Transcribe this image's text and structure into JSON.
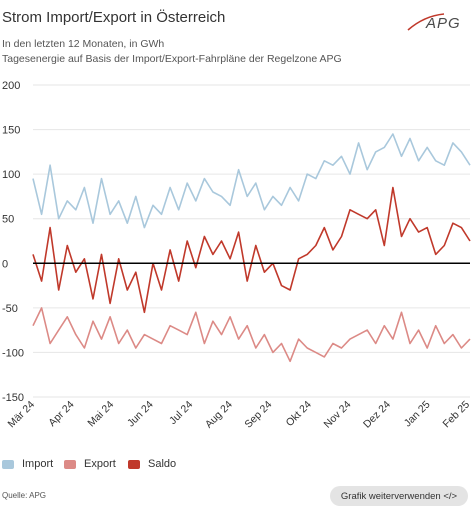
{
  "header": {
    "title": "Strom Import/Export in Österreich",
    "subtitle_1": "In den letzten 12 Monaten, in GWh",
    "subtitle_2": "Tagesenergie auf Basis der Import/Export-Fahrpläne der Regelzone APG",
    "logo_text": "APG"
  },
  "footer": {
    "source": "Quelle: APG",
    "reuse_button": "Grafik weiterverwenden </>"
  },
  "colors": {
    "import": "#a9c8dc",
    "export": "#dc8a86",
    "saldo": "#c0392b",
    "zero_line": "#000000",
    "grid": "#e6e6e6",
    "logo": "#c0392b"
  },
  "chart_data": {
    "type": "line",
    "title": "Strom Import/Export in Österreich",
    "xlabel": "",
    "ylabel": "",
    "ylim": [
      -150,
      200
    ],
    "yticks": [
      -150,
      -100,
      -50,
      0,
      50,
      100,
      150,
      200
    ],
    "x_tick_labels": [
      "Mär 24",
      "Apr 24",
      "Mai 24",
      "Jun 24",
      "Jul 24",
      "Aug 24",
      "Sep 24",
      "Okt 24",
      "Nov 24",
      "Dez 24",
      "Jan 25",
      "Feb 25"
    ],
    "grid": "horizontal",
    "legend_position": "bottom",
    "x_unit": "weekly (approx.)",
    "series": [
      {
        "name": "Import",
        "color": "#a9c8dc",
        "values": [
          95,
          55,
          110,
          50,
          70,
          60,
          85,
          45,
          95,
          55,
          70,
          45,
          75,
          40,
          65,
          55,
          85,
          60,
          90,
          70,
          95,
          80,
          75,
          65,
          105,
          75,
          90,
          60,
          75,
          65,
          85,
          70,
          100,
          95,
          115,
          110,
          120,
          100,
          135,
          105,
          125,
          130,
          145,
          120,
          140,
          115,
          130,
          115,
          110,
          135,
          125,
          110
        ]
      },
      {
        "name": "Export",
        "color": "#dc8a86",
        "values": [
          -70,
          -50,
          -90,
          -75,
          -60,
          -80,
          -95,
          -65,
          -85,
          -60,
          -90,
          -75,
          -95,
          -80,
          -85,
          -90,
          -70,
          -75,
          -80,
          -55,
          -90,
          -65,
          -80,
          -60,
          -85,
          -70,
          -95,
          -80,
          -100,
          -90,
          -110,
          -85,
          -95,
          -100,
          -105,
          -90,
          -95,
          -85,
          -80,
          -75,
          -90,
          -70,
          -85,
          -55,
          -90,
          -75,
          -95,
          -70,
          -90,
          -80,
          -95,
          -85
        ]
      },
      {
        "name": "Saldo",
        "color": "#c0392b",
        "values": [
          10,
          -20,
          40,
          -30,
          20,
          -10,
          5,
          -40,
          10,
          -45,
          5,
          -30,
          -10,
          -55,
          0,
          -30,
          15,
          -20,
          25,
          -5,
          30,
          10,
          25,
          5,
          35,
          -20,
          20,
          -10,
          0,
          -25,
          -30,
          5,
          10,
          20,
          40,
          15,
          30,
          60,
          55,
          50,
          60,
          20,
          85,
          30,
          50,
          35,
          40,
          10,
          20,
          45,
          40,
          25
        ]
      }
    ]
  }
}
